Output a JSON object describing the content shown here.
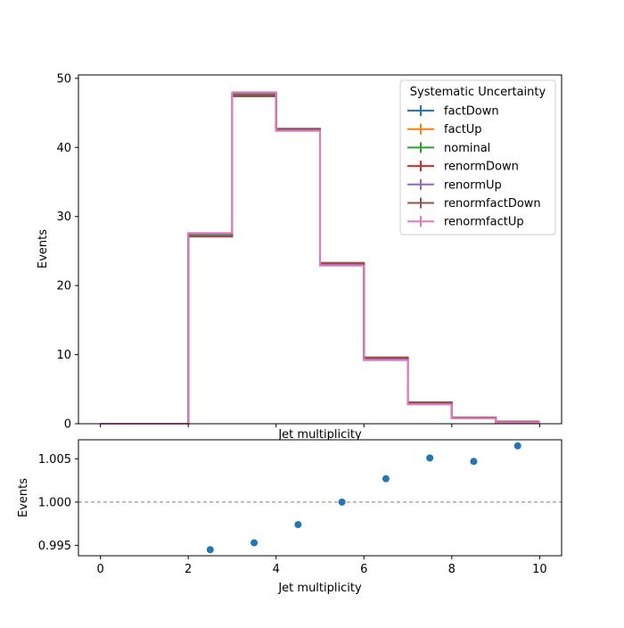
{
  "chart_data": [
    {
      "type": "line",
      "drawstyle": "steps",
      "xlabel": "Jet multiplicity",
      "ylabel": "Events",
      "xlim": [
        -0.5,
        10.5
      ],
      "ylim": [
        0,
        50.5
      ],
      "xticks": [
        0,
        2,
        4,
        6,
        8,
        10
      ],
      "yticks": [
        0,
        10,
        20,
        30,
        40,
        50
      ],
      "ytick_labels": [
        "0",
        "10",
        "20",
        "30",
        "40",
        "50"
      ],
      "grid": false,
      "legend_title": "Systematic Uncertainty",
      "legend_position": "top-right",
      "bin_edges": [
        0,
        1,
        2,
        3,
        4,
        5,
        6,
        7,
        8,
        9,
        10
      ],
      "series": [
        {
          "name": "factDown",
          "color": "#1f77b4",
          "values": [
            0,
            0,
            27.3,
            47.7,
            42.7,
            23.2,
            9.5,
            3.0,
            0.9,
            0.3
          ]
        },
        {
          "name": "factUp",
          "color": "#ff7f0e",
          "values": [
            0,
            0,
            27.4,
            47.8,
            42.6,
            23.0,
            9.3,
            2.9,
            0.8,
            0.2
          ]
        },
        {
          "name": "nominal",
          "color": "#2ca02c",
          "values": [
            0,
            0,
            27.3,
            47.8,
            42.6,
            23.1,
            9.4,
            3.0,
            0.9,
            0.2
          ]
        },
        {
          "name": "renormDown",
          "color": "#d62728",
          "values": [
            0,
            0,
            27.1,
            47.5,
            42.6,
            23.2,
            9.5,
            3.0,
            0.9,
            0.3
          ]
        },
        {
          "name": "renormUp",
          "color": "#9467bd",
          "values": [
            0,
            0,
            27.5,
            47.9,
            42.5,
            23.0,
            9.3,
            2.9,
            0.8,
            0.2
          ]
        },
        {
          "name": "renormfactDown",
          "color": "#8c564b",
          "values": [
            0,
            0,
            27.1,
            47.4,
            42.7,
            23.3,
            9.6,
            3.1,
            0.9,
            0.3
          ]
        },
        {
          "name": "renormfactUp",
          "color": "#e377c2",
          "values": [
            0,
            0,
            27.6,
            48.0,
            42.4,
            22.9,
            9.2,
            2.8,
            0.8,
            0.2
          ]
        }
      ]
    },
    {
      "type": "scatter",
      "xlabel": "Jet multiplicity",
      "ylabel": "Events",
      "xlim": [
        -0.5,
        10.5
      ],
      "ylim": [
        0.9938,
        1.0072
      ],
      "xticks": [
        0,
        2,
        4,
        6,
        8,
        10
      ],
      "yticks": [
        0.995,
        1.0,
        1.005
      ],
      "ytick_labels": [
        "0.995",
        "1.000",
        "1.005"
      ],
      "reference_line": 1.0,
      "reference_line_color": "#808080",
      "marker_color": "#1f77b4",
      "x": [
        2.5,
        3.5,
        4.5,
        5.5,
        6.5,
        7.5,
        8.5,
        9.5
      ],
      "y": [
        0.9945,
        0.9953,
        0.9974,
        1.0,
        1.0027,
        1.0051,
        1.0047,
        1.0065
      ]
    }
  ]
}
